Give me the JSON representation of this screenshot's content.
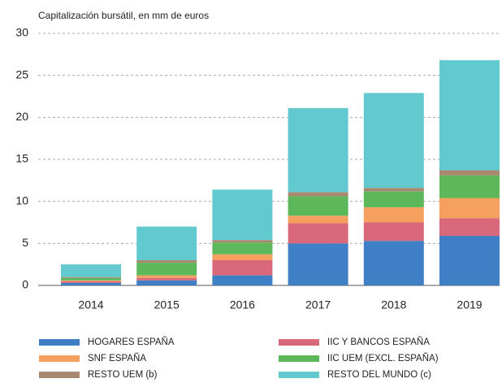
{
  "chart_data": {
    "type": "stacked_bar",
    "subtitle": "Capitalización bursátil, en mm de euros",
    "categories": [
      "2014",
      "2015",
      "2016",
      "2017",
      "2018",
      "2019"
    ],
    "series": [
      {
        "name": "HOGARES ESPAÑA",
        "color": "#3f7fc5",
        "values": [
          0.3,
          0.6,
          1.2,
          5.0,
          5.3,
          5.9
        ]
      },
      {
        "name": "IIC Y BANCOS ESPAÑA",
        "color": "#d9697a",
        "values": [
          0.2,
          0.3,
          1.8,
          2.4,
          2.2,
          2.1
        ]
      },
      {
        "name": "SNF ESPAÑA",
        "color": "#f5a05e",
        "values": [
          0.1,
          0.3,
          0.7,
          0.9,
          1.8,
          2.4
        ]
      },
      {
        "name": "IIC UEM (EXCL. ESPAÑA)",
        "color": "#5cb85a",
        "values": [
          0.3,
          1.5,
          1.4,
          2.3,
          1.9,
          2.7
        ]
      },
      {
        "name": "RESTO UEM (b)",
        "color": "#a8896f",
        "values": [
          0.1,
          0.3,
          0.3,
          0.5,
          0.4,
          0.6
        ]
      },
      {
        "name": "RESTO DEL MUNDO (c)",
        "color": "#62c9cf",
        "values": [
          1.5,
          4.0,
          6.0,
          10.0,
          11.3,
          13.1
        ]
      }
    ],
    "ylim": [
      0,
      30
    ],
    "yticks": [
      0,
      5,
      10,
      15,
      20,
      25,
      30
    ],
    "grid": true
  }
}
